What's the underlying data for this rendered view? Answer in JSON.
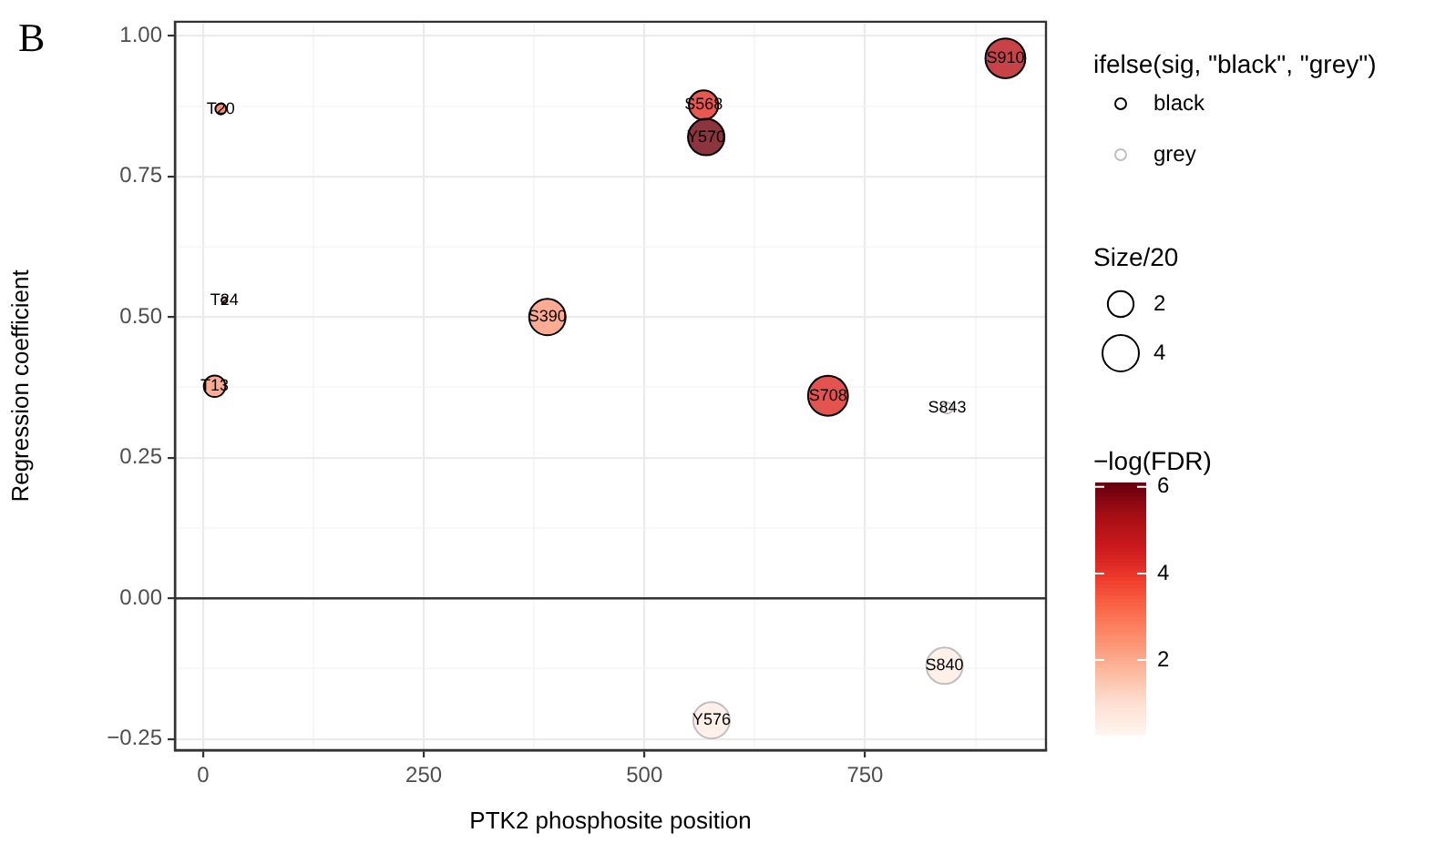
{
  "chart_data": {
    "type": "bubble",
    "title": "B",
    "xlabel": "PTK2 phosphosite position",
    "ylabel": "Regression coefficient",
    "legend_title": "ifelse(sig, \"black\", \"grey\")",
    "clabel": "−log(FDR)",
    "legend": "right",
    "grid": true,
    "xlim": [
      -32,
      955
    ],
    "xticks": [
      0,
      {
        "value": 125,
        "label": null
      },
      250,
      {
        "value": 375,
        "label": null
      },
      500,
      {
        "value": 625,
        "label": null
      },
      750,
      {
        "value": 875,
        "label": null
      }
    ],
    "ylim": [
      -0.27,
      1.025
    ],
    "yticks": [
      {
        "value": -0.25,
        "label": "−0.25"
      },
      {
        "value": -0.125,
        "label": null
      },
      {
        "value": 0,
        "label": "0.00"
      },
      {
        "value": 0.125,
        "label": null
      },
      0.25,
      {
        "value": 0.375,
        "label": null
      },
      {
        "value": 0.5,
        "label": "0.50"
      },
      {
        "value": 0.625,
        "label": null
      },
      0.75,
      {
        "value": 0.875,
        "label": null
      },
      {
        "value": 1,
        "label": "1.00"
      }
    ],
    "clim": [
      0.3,
      6.1
    ],
    "cticks": [
      2,
      4,
      6
    ],
    "size_legend": [
      2,
      4
    ],
    "ref_lines": [
      {
        "axis": "y",
        "value": 0,
        "color": "#333333"
      }
    ],
    "series": [
      {
        "name": "black",
        "color": "#000000",
        "x": [
          20,
          24,
          13,
          390,
          567,
          570,
          909,
          708
        ],
        "values": [
          0.87,
          0.53,
          0.377,
          0.5,
          0.877,
          0.82,
          0.96,
          0.36
        ],
        "sizes": [
          0.36,
          0.1,
          1.4,
          4,
          2.6,
          4,
          4.8,
          4.8
        ],
        "cvalues": [
          3,
          2,
          2.4,
          2.4,
          4.2,
          6,
          5,
          4.3
        ]
      },
      {
        "name": "grey",
        "color": "#bebebe",
        "x": [
          843,
          840,
          576
        ],
        "values": [
          0.338,
          -0.12,
          -0.217
        ],
        "sizes": [
          0.36,
          4,
          4
        ],
        "cvalues": [
          0.4,
          0.6,
          0.6
        ]
      }
    ],
    "annotations": [
      "Size/20",
      {
        "text": "T20",
        "x": 20,
        "y": 0.87
      },
      {
        "text": "T24",
        "x": 24,
        "y": 0.53
      },
      {
        "text": "T13",
        "x": 13,
        "y": 0.377
      },
      {
        "text": "S390",
        "x": 390,
        "y": 0.5
      },
      {
        "text": "S568",
        "x": 567,
        "y": 0.877
      },
      {
        "text": "Y570",
        "x": 570,
        "y": 0.82
      },
      {
        "text": "S910",
        "x": 909,
        "y": 0.96
      },
      {
        "text": "S708",
        "x": 708,
        "y": 0.36
      },
      {
        "text": "S843",
        "x": 843,
        "y": 0.338
      },
      {
        "text": "S840",
        "x": 840,
        "y": -0.12
      },
      {
        "text": "Y576",
        "x": 576,
        "y": -0.217
      }
    ]
  }
}
